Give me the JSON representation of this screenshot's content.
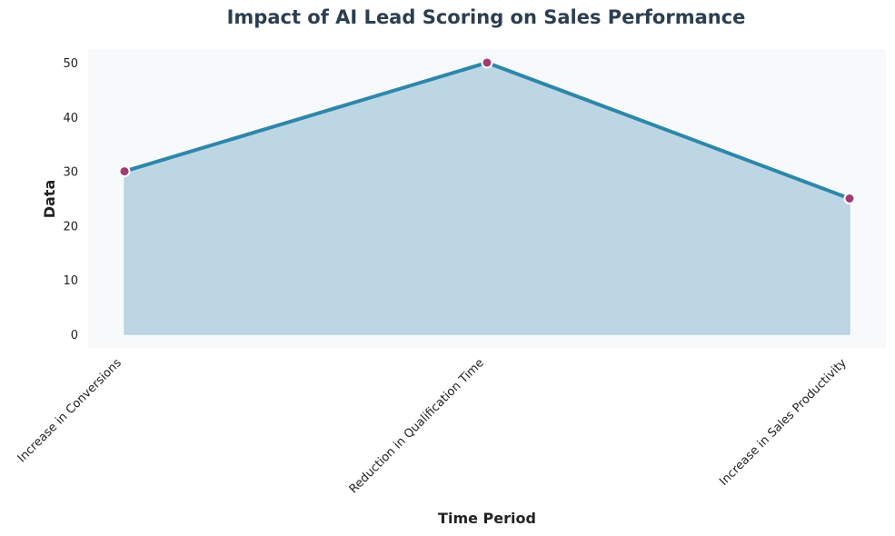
{
  "chart_data": {
    "type": "area",
    "title": "Impact of AI Lead Scoring on Sales Performance",
    "xlabel": "Time Period",
    "ylabel": "Data",
    "categories": [
      "Increase in Conversions",
      "Reduction in Qualification Time",
      "Increase in Sales Productivity"
    ],
    "values": [
      30,
      50,
      25
    ],
    "ylim": [
      -2.5,
      52.5
    ],
    "yticks": [
      "0",
      "10",
      "20",
      "30",
      "40",
      "50"
    ],
    "grid": false,
    "legend": "none",
    "colors": {
      "line": "#2e86ab",
      "fill": "#a9cadb",
      "marker": "#a23b72",
      "marker_edge": "#ffffff",
      "plot_bg": "#f7f9fb",
      "title": "#2c3e50"
    }
  }
}
